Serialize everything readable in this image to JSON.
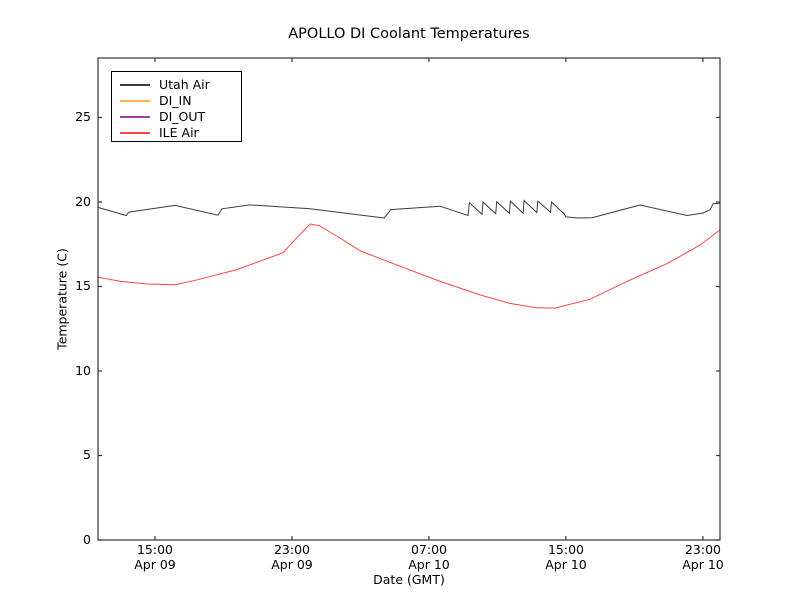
{
  "title": "APOLLO DI Coolant Temperatures",
  "axes": {
    "xlabel": "Date (GMT)",
    "ylabel": "Temperature (C)",
    "yticks": [
      "0",
      "5",
      "10",
      "15",
      "20",
      "25"
    ],
    "xticks": [
      {
        "time": "15:00",
        "date": "Apr 09"
      },
      {
        "time": "23:00",
        "date": "Apr 09"
      },
      {
        "time": "07:00",
        "date": "Apr 10"
      },
      {
        "time": "15:00",
        "date": "Apr 10"
      },
      {
        "time": "23:00",
        "date": "Apr 10"
      }
    ]
  },
  "legend": {
    "items": [
      {
        "label": "Utah Air",
        "color": "#3c3c3c"
      },
      {
        "label": "DI_IN",
        "color": "#ffb14e"
      },
      {
        "label": "DI_OUT",
        "color": "#a040a0"
      },
      {
        "label": "ILE Air",
        "color": "#ff4444"
      }
    ]
  },
  "chart_data": {
    "type": "line",
    "title": "APOLLO DI Coolant Temperatures",
    "xlabel": "Date (GMT)",
    "ylabel": "Temperature (C)",
    "x_unit": "hours since Apr 09 00:00 GMT",
    "xlim": [
      11.67,
      48.0
    ],
    "ylim": [
      0,
      28.52
    ],
    "xtick_values": [
      15,
      23,
      31,
      39,
      47
    ],
    "ytick_values": [
      0,
      5,
      10,
      15,
      20,
      25
    ],
    "grid": false,
    "legend_position": "upper left",
    "series": [
      {
        "name": "Utah Air",
        "color": "#3c3c3c",
        "width": 1,
        "points": [
          [
            11.67,
            19.68
          ],
          [
            13.31,
            19.2
          ],
          [
            13.48,
            19.4
          ],
          [
            16.17,
            19.8
          ],
          [
            18.68,
            19.22
          ],
          [
            18.91,
            19.6
          ],
          [
            20.55,
            19.83
          ],
          [
            24.05,
            19.6
          ],
          [
            28.38,
            19.05
          ],
          [
            28.78,
            19.55
          ],
          [
            31.65,
            19.75
          ],
          [
            33.28,
            19.2
          ],
          [
            33.36,
            19.95
          ],
          [
            34.1,
            19.28
          ],
          [
            34.16,
            20.0
          ],
          [
            34.9,
            19.3
          ],
          [
            34.96,
            20.02
          ],
          [
            35.7,
            19.33
          ],
          [
            35.76,
            20.05
          ],
          [
            36.5,
            19.33
          ],
          [
            36.56,
            20.08
          ],
          [
            37.3,
            19.38
          ],
          [
            37.36,
            20.05
          ],
          [
            38.1,
            19.4
          ],
          [
            38.16,
            20.0
          ],
          [
            38.9,
            19.3
          ],
          [
            39.0,
            19.12
          ],
          [
            39.71,
            19.05
          ],
          [
            40.53,
            19.07
          ],
          [
            43.33,
            19.82
          ],
          [
            46.08,
            19.2
          ],
          [
            47.01,
            19.35
          ],
          [
            47.42,
            19.55
          ],
          [
            47.6,
            19.9
          ],
          [
            48.0,
            19.93
          ]
        ]
      },
      {
        "name": "DI_IN",
        "color": "#ffb14e",
        "width": 1,
        "opacity": 0.8,
        "points": [
          [
            11.67,
            0
          ],
          [
            48.0,
            0
          ]
        ]
      },
      {
        "name": "DI_OUT",
        "color": "#a040a0",
        "width": 1,
        "opacity": 0.7,
        "points": [
          [
            11.67,
            0
          ],
          [
            48.0,
            0
          ]
        ]
      },
      {
        "name": "ILE Air",
        "color": "#ff4444",
        "width": 1,
        "points": [
          [
            11.67,
            15.55
          ],
          [
            13.0,
            15.3
          ],
          [
            14.53,
            15.15
          ],
          [
            16.17,
            15.1
          ],
          [
            17.5,
            15.4
          ],
          [
            19.79,
            16.0
          ],
          [
            22.48,
            17.0
          ],
          [
            23.2,
            17.8
          ],
          [
            24.05,
            18.7
          ],
          [
            24.6,
            18.6
          ],
          [
            25.8,
            17.87
          ],
          [
            27.0,
            17.1
          ],
          [
            29.31,
            16.2
          ],
          [
            31.65,
            15.3
          ],
          [
            33.98,
            14.5
          ],
          [
            35.73,
            14.0
          ],
          [
            37.2,
            13.75
          ],
          [
            38.36,
            13.72
          ],
          [
            40.41,
            14.25
          ],
          [
            42.57,
            15.3
          ],
          [
            44.9,
            16.35
          ],
          [
            46.83,
            17.45
          ],
          [
            48.0,
            18.35
          ]
        ]
      }
    ]
  }
}
